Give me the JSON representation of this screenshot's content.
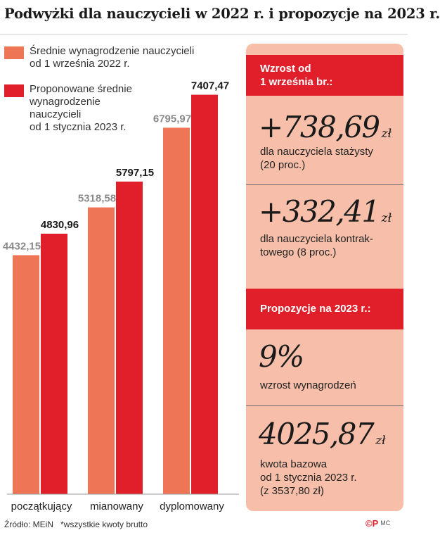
{
  "title": "Podwyżki dla nauczycieli w 2022 r. i propozycje na 2023 r.",
  "colors": {
    "series_2022": "#ef7557",
    "series_2023": "#e11f2b",
    "label_2022": "#8a8a8a",
    "label_2023": "#1a1a1a",
    "panel_bg": "#f7bfa9",
    "panel_header": "#e11f2b"
  },
  "chart_data": {
    "type": "bar",
    "categories": [
      "początkujący",
      "mianowany",
      "dyplomowany"
    ],
    "series": [
      {
        "name": "Średnie wynagrodzenie nauczycieli\nod 1 września 2022 r.",
        "values": [
          4432.15,
          5318.58,
          6795.97
        ],
        "labels": [
          "4432,15",
          "5318,58",
          "6795,97"
        ]
      },
      {
        "name": "Proponowane średnie\nwynagrodzenie\nnauczycieli\nod 1 stycznia 2023 r.",
        "values": [
          4830.96,
          5797.15,
          7407.47
        ],
        "labels": [
          "4830,96",
          "5797,15",
          "7407,47"
        ]
      }
    ],
    "ylim": [
      0,
      8000
    ],
    "grid": false,
    "legend_position": "top-left"
  },
  "panel": {
    "header1": "Wzrost od\n1 września br.:",
    "item1_value": "+738,69",
    "item1_unit": "zł",
    "item1_desc": "dla nauczyciela stażysty\n(20 proc.)",
    "item2_value": "+332,41",
    "item2_unit": "zł",
    "item2_desc": "dla nauczyciela kontrak-\ntowego (8 proc.)",
    "header2": "Propozycje na 2023 r.:",
    "item3_value": "9%",
    "item3_desc": "wzrost wynagrodzeń",
    "item4_value": "4025,87",
    "item4_unit": "zł",
    "item4_desc": "kwota bazowa\nod 1 stycznia 2023 r.\n(z 3537,80 zł)"
  },
  "footer": {
    "source": "Źródło: MEiN",
    "note": "*wszystkie kwoty brutto",
    "logo": "©P",
    "logo_initials": "MC"
  }
}
